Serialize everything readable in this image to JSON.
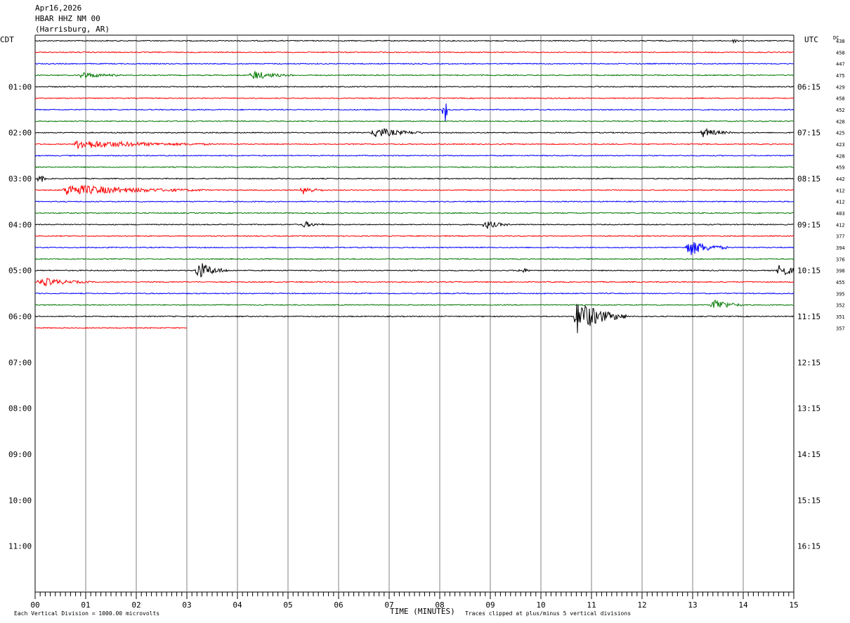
{
  "header": {
    "date": "Apr16,2026",
    "station": "HBAR HHZ NM 00",
    "location": "(Harrisburg, AR)"
  },
  "axis_labels": {
    "left_tz": "CDT",
    "right_tz": "UTC",
    "dc_label": "DC",
    "xlabel": "TIME (MINUTES)"
  },
  "footer": {
    "scale_note": "Each Vertical Division = 1000.00 microvolts",
    "clip_note": "Traces clipped at plus/minus 5 vertical divisions"
  },
  "colors": {
    "trace_cycle": [
      "#000000",
      "#ff0000",
      "#0000ff",
      "#007700"
    ],
    "grid": "#808080",
    "line": "#000000"
  },
  "chart_data": {
    "type": "line",
    "title": "HBAR HHZ NM 00 (Harrisburg, AR) Apr16,2026",
    "xlabel": "TIME (MINUTES)",
    "x_ticks": [
      "00",
      "01",
      "02",
      "03",
      "04",
      "05",
      "06",
      "07",
      "08",
      "09",
      "10",
      "11",
      "12",
      "13",
      "14",
      "15"
    ],
    "xlim": [
      0,
      15
    ],
    "rows_total": 48,
    "row_minutes": 15,
    "left_hour_labels": [
      "01:00",
      "02:00",
      "03:00",
      "04:00",
      "05:00",
      "06:00",
      "07:00",
      "08:00",
      "09:00",
      "10:00",
      "11:00"
    ],
    "right_hour_labels": [
      "06:15",
      "07:15",
      "08:15",
      "09:15",
      "10:15",
      "11:15",
      "12:15",
      "13:15",
      "14:15",
      "15:15",
      "16:15"
    ],
    "dc_offsets": [
      438,
      458,
      447,
      475,
      429,
      458,
      452,
      428,
      425,
      423,
      428,
      459,
      442,
      412,
      412,
      403,
      412,
      377,
      394,
      376,
      398,
      455,
      395,
      352,
      351,
      357
    ],
    "last_trace_end_minute": 3.0,
    "events": [
      {
        "row": 0,
        "minute": 13.8,
        "amp": 0.15,
        "dur": 0.3
      },
      {
        "row": 3,
        "minute": 0.9,
        "amp": 0.3,
        "dur": 0.8
      },
      {
        "row": 3,
        "minute": 4.3,
        "amp": 0.4,
        "dur": 0.8
      },
      {
        "row": 6,
        "minute": 8.1,
        "amp": 2.0,
        "dur": 0.05
      },
      {
        "row": 8,
        "minute": 6.7,
        "amp": 0.5,
        "dur": 1.0
      },
      {
        "row": 8,
        "minute": 13.2,
        "amp": 0.4,
        "dur": 0.6
      },
      {
        "row": 9,
        "minute": 0.8,
        "amp": 0.4,
        "dur": 2.7
      },
      {
        "row": 12,
        "minute": 0.1,
        "amp": 0.6,
        "dur": 0.1
      },
      {
        "row": 13,
        "minute": 0.6,
        "amp": 0.5,
        "dur": 2.8
      },
      {
        "row": 13,
        "minute": 5.3,
        "amp": 0.4,
        "dur": 0.4
      },
      {
        "row": 16,
        "minute": 5.3,
        "amp": 0.3,
        "dur": 0.4
      },
      {
        "row": 16,
        "minute": 8.9,
        "amp": 0.4,
        "dur": 0.5
      },
      {
        "row": 18,
        "minute": 12.9,
        "amp": 0.8,
        "dur": 0.8
      },
      {
        "row": 20,
        "minute": 3.2,
        "amp": 0.9,
        "dur": 0.6
      },
      {
        "row": 20,
        "minute": 9.6,
        "amp": 0.3,
        "dur": 0.2
      },
      {
        "row": 20,
        "minute": 14.7,
        "amp": 0.7,
        "dur": 0.5
      },
      {
        "row": 21,
        "minute": 0.1,
        "amp": 0.4,
        "dur": 1.0
      },
      {
        "row": 23,
        "minute": 13.4,
        "amp": 0.6,
        "dur": 0.6
      },
      {
        "row": 24,
        "minute": 10.7,
        "amp": 1.6,
        "dur": 1.0
      }
    ]
  }
}
